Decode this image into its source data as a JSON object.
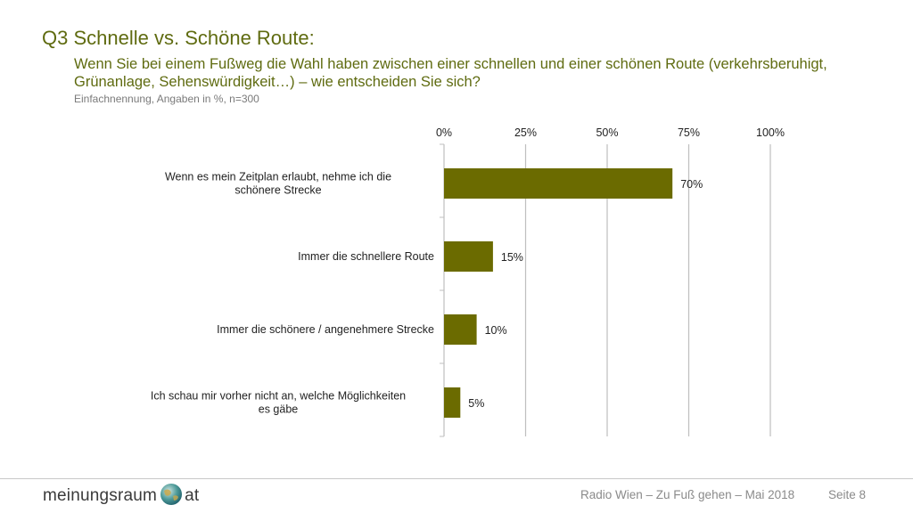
{
  "slide": {
    "title": "Q3 Schnelle vs. Schöne Route:",
    "subtitle": "Wenn Sie bei einem Fußweg die Wahl haben zwischen einer schnellen und einer schönen Route (verkehrsberuhigt, Grünanlage, Sehenswürdigkeit…) – wie entscheiden Sie sich?",
    "note": "Einfachnennung, Angaben in %, n=300"
  },
  "chart_data": {
    "type": "bar",
    "orientation": "horizontal",
    "categories": [
      "Wenn es mein Zeitplan erlaubt, nehme ich die schönere Strecke",
      "Immer die schnellere Route",
      "Immer die schönere / angenehmere Strecke",
      "Ich schau mir vorher nicht an, welche Möglichkeiten es gäbe"
    ],
    "values": [
      70,
      15,
      10,
      5
    ],
    "value_labels": [
      "70%",
      "15%",
      "10%",
      "5%"
    ],
    "xlim": [
      0,
      100
    ],
    "x_ticks": [
      0,
      25,
      50,
      75,
      100
    ],
    "x_tick_labels": [
      "0%",
      "25%",
      "50%",
      "75%",
      "100%"
    ],
    "x_axis_position": "top",
    "grid": true,
    "bar_color": "#6b6b00",
    "grid_color": "#bfbfbf",
    "title": "",
    "xlabel": "",
    "ylabel": ""
  },
  "footer": {
    "logo_left": "meinungsraum",
    "logo_right": "at",
    "source": "Radio Wien – Zu Fuß gehen – Mai 2018",
    "page": "Seite 8"
  },
  "colors": {
    "title": "#5f6b10",
    "note": "#7a7a7a",
    "footer_text": "#8a8a8a"
  }
}
